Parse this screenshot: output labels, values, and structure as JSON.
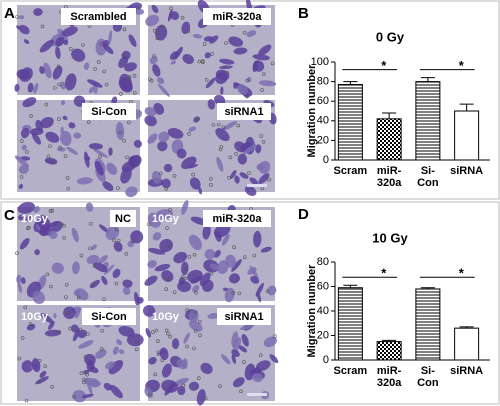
{
  "figure": {
    "panel_a": {
      "letter": "A",
      "images": [
        {
          "label": "Scrambled"
        },
        {
          "label": "miR-320a"
        },
        {
          "label": "Si-Con"
        },
        {
          "label": "siRNA1"
        }
      ]
    },
    "panel_c": {
      "letter": "C",
      "images": [
        {
          "dose": "10Gy",
          "label": "NC"
        },
        {
          "dose": "10Gy",
          "label": "miR-320a"
        },
        {
          "dose": "10Gy",
          "label": "Si-Con"
        },
        {
          "dose": "10Gy",
          "label": "siRNA1"
        }
      ]
    }
  },
  "chart_data": [
    {
      "type": "bar",
      "letter": "B",
      "title": "0 Gy",
      "ylabel": "Migration number",
      "categories": [
        [
          "Scram"
        ],
        [
          "miR-",
          "320a"
        ],
        [
          "Si-",
          "Con"
        ],
        [
          "siRNA"
        ]
      ],
      "values": [
        77,
        42,
        80,
        50
      ],
      "errors": [
        3,
        6,
        4,
        7
      ],
      "patterns": [
        "hlines",
        "checker",
        "hlines",
        "none"
      ],
      "ylim": [
        0,
        100
      ],
      "yticks": [
        0,
        20,
        40,
        60,
        80,
        100
      ],
      "comparisons": [
        {
          "label": "*",
          "between": [
            0,
            1
          ]
        },
        {
          "label": "*",
          "between": [
            2,
            3
          ]
        }
      ]
    },
    {
      "type": "bar",
      "letter": "D",
      "title": "10 Gy",
      "ylabel": "Migration number",
      "categories": [
        [
          "Scram"
        ],
        [
          "miR-",
          "320a"
        ],
        [
          "Si-",
          "Con"
        ],
        [
          "siRNA"
        ]
      ],
      "values": [
        59,
        15,
        58,
        26
      ],
      "errors": [
        2,
        1,
        1,
        1
      ],
      "patterns": [
        "hlines",
        "checker",
        "hlines",
        "none"
      ],
      "ylim": [
        0,
        80
      ],
      "yticks": [
        0,
        20,
        40,
        60,
        80
      ],
      "comparisons": [
        {
          "label": "*",
          "between": [
            0,
            1
          ]
        },
        {
          "label": "*",
          "between": [
            2,
            3
          ]
        }
      ]
    }
  ]
}
